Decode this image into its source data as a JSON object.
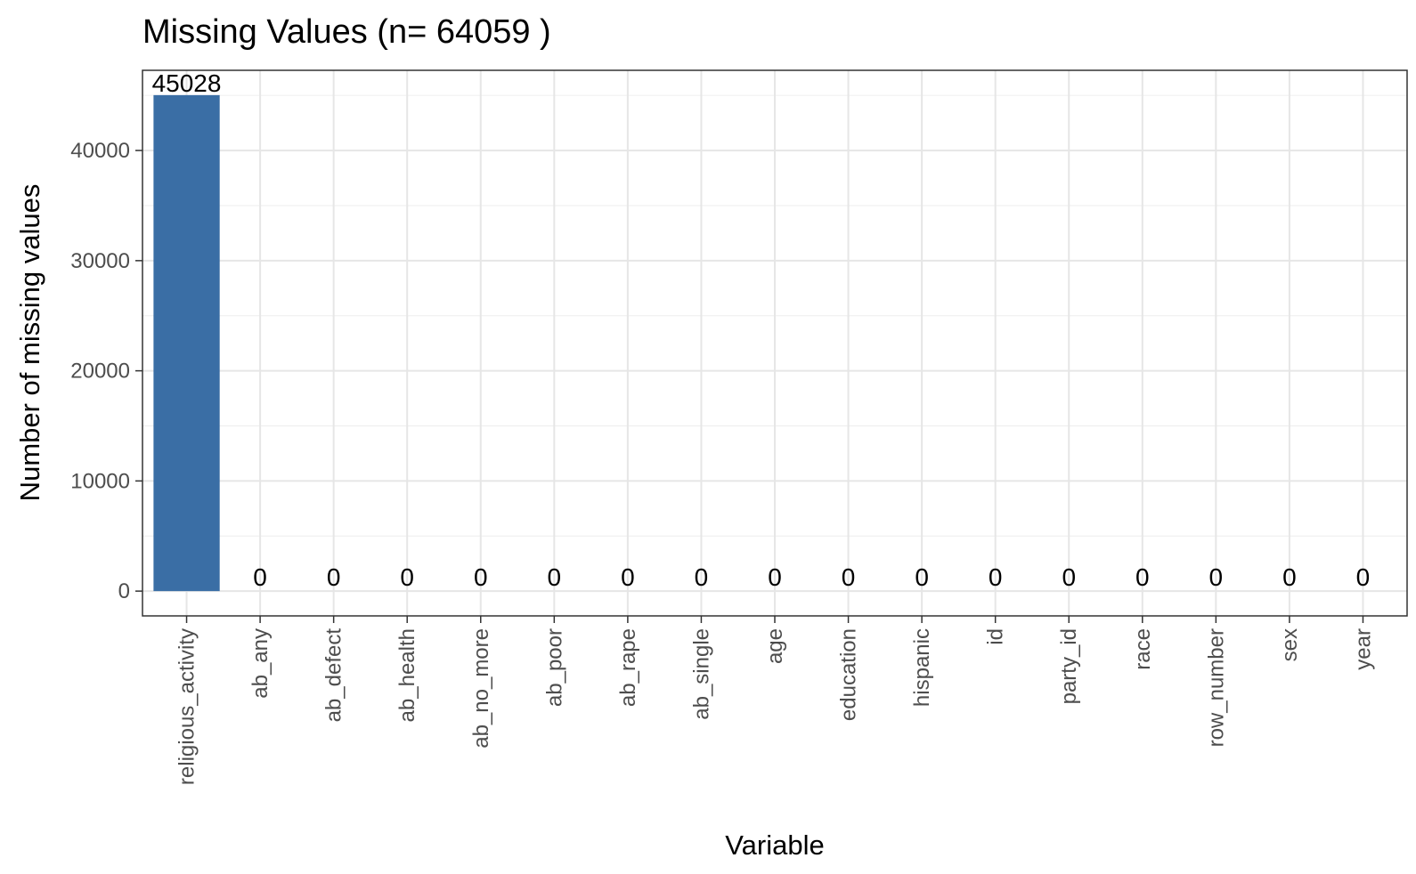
{
  "chart_data": {
    "type": "bar",
    "title": "Missing Values (n= 64059 )",
    "xlabel": "Variable",
    "ylabel": "Number of missing values",
    "categories": [
      "religious_activity",
      "ab_any",
      "ab_defect",
      "ab_health",
      "ab_no_more",
      "ab_poor",
      "ab_rape",
      "ab_single",
      "age",
      "education",
      "hispanic",
      "id",
      "party_id",
      "race",
      "row_number",
      "sex",
      "year"
    ],
    "values": [
      45028,
      0,
      0,
      0,
      0,
      0,
      0,
      0,
      0,
      0,
      0,
      0,
      0,
      0,
      0,
      0,
      0
    ],
    "data_labels": [
      "45028",
      "0",
      "0",
      "0",
      "0",
      "0",
      "0",
      "0",
      "0",
      "0",
      "0",
      "0",
      "0",
      "0",
      "0",
      "0",
      "0"
    ],
    "yticks": [
      0,
      10000,
      20000,
      30000,
      40000
    ],
    "ytick_labels": [
      "0",
      "10000",
      "20000",
      "30000",
      "40000"
    ],
    "ylim": [
      -2251,
      47279
    ],
    "grid": true,
    "bar_color": "#3a6ea5"
  }
}
